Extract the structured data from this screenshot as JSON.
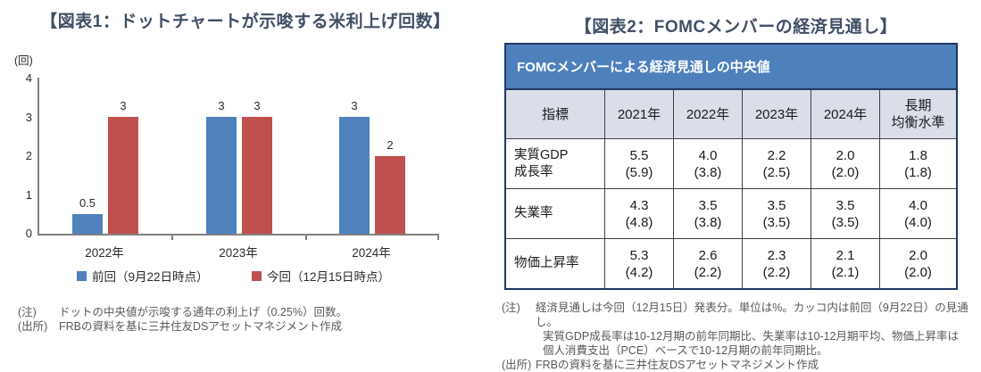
{
  "figure1": {
    "title": "【図表1：ドットチャートが示唆する米利上げ回数】",
    "notes": [
      {
        "label": "(注)",
        "text": "ドットの中央値が示唆する通年の利上げ（0.25%）回数。"
      },
      {
        "label": "(出所)",
        "text": "FRBの資料を基に三井住友DSアセットマネジメント作成"
      }
    ]
  },
  "figure2": {
    "title": "【図表2：FOMCメンバーの経済見通し】",
    "notes": [
      {
        "label": "(注)",
        "text": "経済見通しは今回（12月15日）発表分。単位は%。カッコ内は前回（9月22日）の見通し。"
      },
      {
        "label": "",
        "text": "実質GDP成長率は10-12月期の前年同期比、失業率は10-12月期平均、物価上昇率は"
      },
      {
        "label": "",
        "text": "個人消費支出（PCE）ベースで10-12月期の前年同期比。"
      },
      {
        "label": "(出所)",
        "text": "FRBの資料を基に三井住友DSアセットマネジメント作成"
      }
    ]
  },
  "chart_data": [
    {
      "type": "bar",
      "title": "ドットチャートが示唆する米利上げ回数",
      "categories": [
        "2022年",
        "2023年",
        "2024年"
      ],
      "series": [
        {
          "name": "前回（9月22日時点）",
          "color": "#4F81BD",
          "values": [
            0.5,
            3,
            3
          ]
        },
        {
          "name": "今回（12月15日時点）",
          "color": "#C0504D",
          "values": [
            3,
            3,
            2
          ]
        }
      ],
      "xlabel": "",
      "ylabel": "(回)",
      "ylim": [
        0,
        4
      ],
      "yticks": [
        0,
        1,
        2,
        3,
        4
      ],
      "grid": false,
      "legend_position": "bottom",
      "data_labels": true
    },
    {
      "type": "table",
      "caption": "FOMCメンバーによる経済見通しの中央値",
      "headers": [
        "指標",
        "2021年",
        "2022年",
        "2023年",
        "2024年",
        "長期\n均衡水準"
      ],
      "rows": [
        {
          "label": "実質GDP\n成長率",
          "cells": [
            [
              "5.5",
              "(5.9)"
            ],
            [
              "4.0",
              "(3.8)"
            ],
            [
              "2.2",
              "(2.5)"
            ],
            [
              "2.0",
              "(2.0)"
            ],
            [
              "1.8",
              "(1.8)"
            ]
          ]
        },
        {
          "label": "失業率",
          "cells": [
            [
              "4.3",
              "(4.8)"
            ],
            [
              "3.5",
              "(3.8)"
            ],
            [
              "3.5",
              "(3.5)"
            ],
            [
              "3.5",
              "(3.5)"
            ],
            [
              "4.0",
              "(4.0)"
            ]
          ]
        },
        {
          "label": "物価上昇率",
          "cells": [
            [
              "5.3",
              "(4.2)"
            ],
            [
              "2.6",
              "(2.2)"
            ],
            [
              "2.3",
              "(2.2)"
            ],
            [
              "2.1",
              "(2.1)"
            ],
            [
              "2.0",
              "(2.0)"
            ]
          ]
        }
      ]
    }
  ],
  "colors": {
    "title_text": "#414F66",
    "bar_previous": "#4F81BD",
    "bar_current": "#C0504D",
    "table_band_bg": "#4E80BB",
    "table_header_bg": "#D9DEE9",
    "table_outer_border": "#1F3864",
    "axis_gray": "#808080",
    "note_text": "#595959"
  }
}
